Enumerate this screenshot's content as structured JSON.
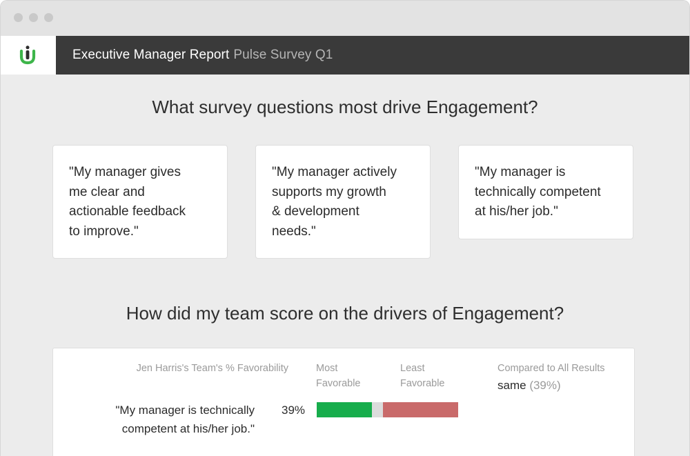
{
  "app": {
    "title": "Executive Manager Report",
    "subtitle": "Pulse Survey Q1",
    "logo": "ultimate-software-logo",
    "brand_green": "#3db54a"
  },
  "section1": {
    "heading": "What survey questions most drive Engagement?",
    "cards": [
      {
        "lines": [
          "\"My manager gives",
          "me clear and",
          "actionable feedback",
          "to improve.\""
        ]
      },
      {
        "lines": [
          "\"My manager actively",
          "supports my growth",
          "& development",
          "needs.\""
        ]
      },
      {
        "lines": [
          "\"My manager is",
          "technically competent",
          "at his/her job.\""
        ]
      }
    ]
  },
  "section2": {
    "heading": "How did my team score on the drivers of Engagement?",
    "columns": {
      "team": "Jen Harris's Team's % Favorability",
      "most": [
        "Most",
        "Favorable"
      ],
      "least": [
        "Least",
        "Favorable"
      ],
      "compared": "Compared to All Results"
    },
    "rows": [
      {
        "question_lines": [
          "\"My manager is technically",
          "competent at his/her job.\""
        ],
        "percent_label": "39%",
        "favorable_fraction": 0.39,
        "neutral_fraction": 0.08,
        "unfavorable_fraction": 0.53,
        "comparison": "same",
        "comparison_pct": "(39%)"
      }
    ],
    "colors": {
      "favorable": "#17ad4c",
      "neutral": "#dcdcdc",
      "unfavorable": "#c96a6a"
    }
  }
}
